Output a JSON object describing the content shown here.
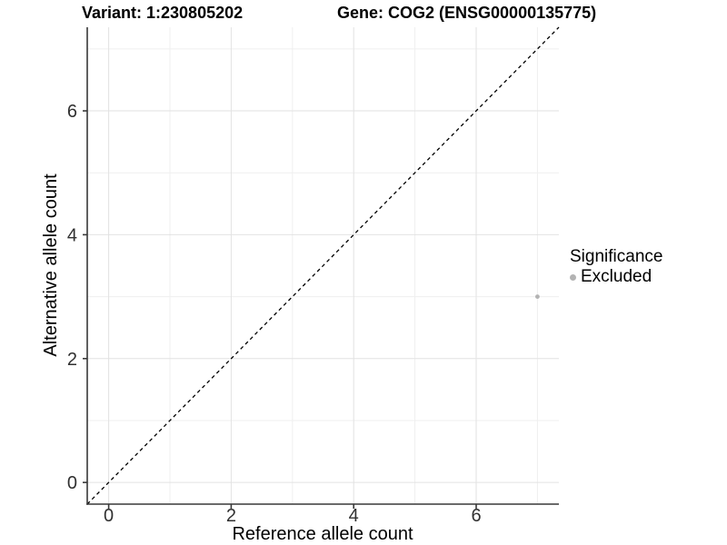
{
  "header": {
    "variant_title": "Variant: 1:230805202",
    "gene_title": "Gene: COG2 (ENSG00000135775)"
  },
  "chart_data": {
    "type": "scatter",
    "xlabel": "Reference allele count",
    "ylabel": "Alternative allele count",
    "xlim": [
      -0.35,
      7.35
    ],
    "ylim": [
      -0.35,
      7.35
    ],
    "xticks": [
      0,
      2,
      4,
      6
    ],
    "yticks": [
      0,
      2,
      4,
      6
    ],
    "x_minor_gridlines": [
      1,
      3,
      5,
      7
    ],
    "y_minor_gridlines": [
      1,
      3,
      5,
      7
    ],
    "grid": true,
    "series": [
      {
        "name": "Excluded",
        "color": "#b3b3b3",
        "points": [
          {
            "x": 7,
            "y": 3
          }
        ]
      }
    ],
    "reference_line": {
      "type": "identity",
      "slope": 1,
      "intercept": 0,
      "style": "dashed",
      "color": "#000000"
    },
    "legend": {
      "position": "right",
      "title": "Significance",
      "items": [
        {
          "label": "Excluded",
          "color": "#b3b3b3"
        }
      ]
    }
  },
  "colors": {
    "background": "#ffffff",
    "grid_major": "#e2e2e2",
    "grid_minor": "#efefef",
    "axis_line": "#383838",
    "tick_mark": "#383838",
    "tick_label": "#303030",
    "point": "#b3b3b3"
  }
}
